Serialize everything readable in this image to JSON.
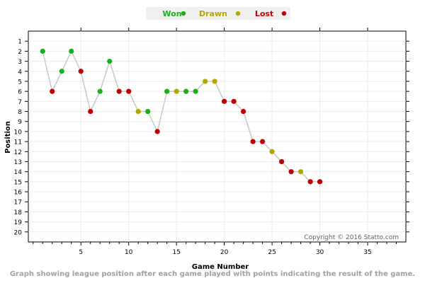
{
  "caption": "Graph showing league position after each game played with points indicating the result of the game.",
  "chart_data": {
    "type": "line",
    "xlabel": "Game Number",
    "ylabel": "Position",
    "xlim": [
      -0.5,
      39
    ],
    "ylim": [
      21,
      0
    ],
    "x_ticks": [
      "5",
      "10",
      "15",
      "20",
      "25",
      "30",
      "35"
    ],
    "y_ticks": [
      "1",
      "2",
      "3",
      "4",
      "5",
      "6",
      "7",
      "8",
      "9",
      "10",
      "11",
      "12",
      "13",
      "14",
      "15",
      "16",
      "17",
      "18",
      "19",
      "20"
    ],
    "y_reversed": true,
    "grid": true,
    "legend_placement": "top-center",
    "legend": [
      {
        "label": "Won",
        "color": "#17b117"
      },
      {
        "label": "Drawn",
        "color": "#b3a600"
      },
      {
        "label": "Lost",
        "color": "#c00000"
      }
    ],
    "line_color": "#c8c8c8",
    "copyright": "Copyright © 2016 Statto.com",
    "series": [
      {
        "x": [
          1,
          2,
          3,
          4,
          5,
          6,
          7,
          8,
          9,
          10,
          11,
          12,
          13,
          14,
          15,
          16,
          17,
          18,
          19,
          20,
          21,
          22,
          23,
          24,
          25,
          26,
          27,
          28,
          29,
          30
        ],
        "values": [
          2,
          6,
          4,
          2,
          4,
          8,
          6,
          3,
          6,
          6,
          8,
          8,
          10,
          6,
          6,
          6,
          6,
          5,
          5,
          7,
          7,
          8,
          11,
          11,
          12,
          13,
          14,
          14,
          15,
          15
        ],
        "results": [
          "Won",
          "Lost",
          "Won",
          "Won",
          "Lost",
          "Lost",
          "Won",
          "Won",
          "Lost",
          "Lost",
          "Drawn",
          "Won",
          "Lost",
          "Won",
          "Drawn",
          "Won",
          "Won",
          "Drawn",
          "Drawn",
          "Lost",
          "Lost",
          "Lost",
          "Lost",
          "Lost",
          "Drawn",
          "Lost",
          "Lost",
          "Drawn",
          "Lost",
          "Lost"
        ]
      }
    ]
  }
}
